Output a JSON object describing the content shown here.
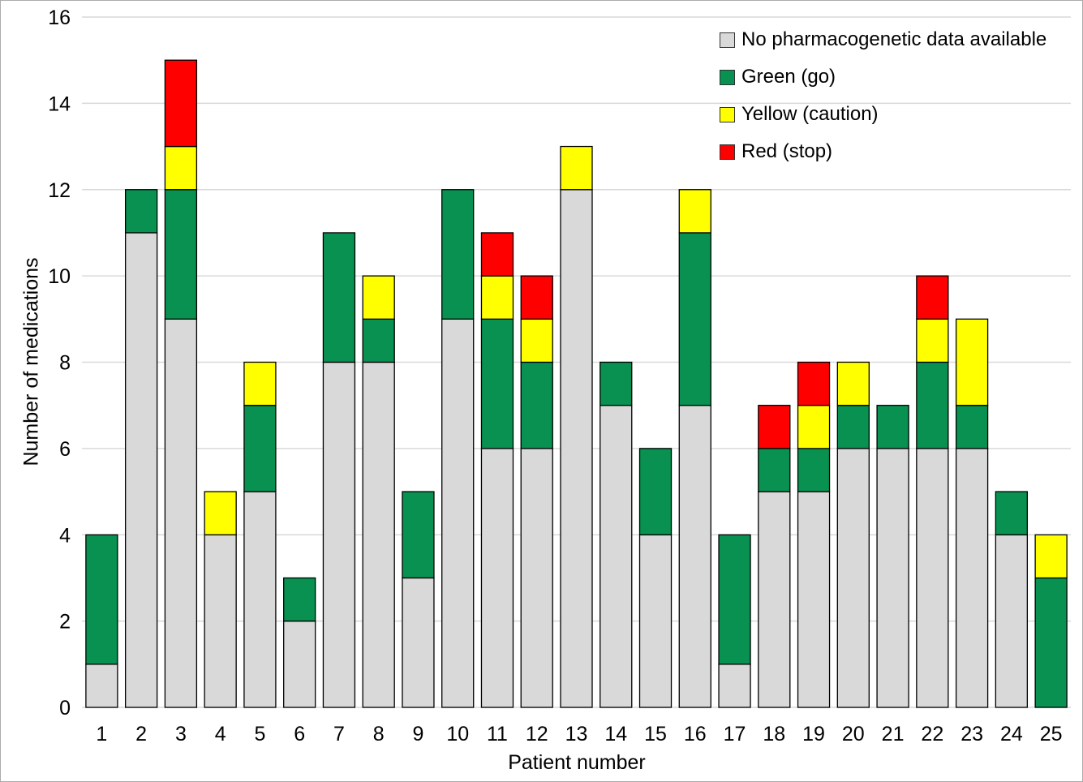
{
  "figure": {
    "background": "#ffffff",
    "border_color": "#ababab",
    "text_color": "#000000"
  },
  "chart_data": {
    "type": "bar",
    "stacked": true,
    "title": "",
    "xlabel": "Patient number",
    "ylabel": "Number of medications",
    "categories": [
      "1",
      "2",
      "3",
      "4",
      "5",
      "6",
      "7",
      "8",
      "9",
      "10",
      "11",
      "12",
      "13",
      "14",
      "15",
      "16",
      "17",
      "18",
      "19",
      "20",
      "21",
      "22",
      "23",
      "24",
      "25"
    ],
    "series": [
      {
        "name": "No pharmacogenetic data available",
        "color": "#d9d9d9",
        "values": [
          1,
          11,
          9,
          4,
          5,
          2,
          8,
          8,
          3,
          9,
          6,
          6,
          12,
          7,
          4,
          7,
          1,
          5,
          5,
          6,
          6,
          6,
          6,
          4,
          0
        ]
      },
      {
        "name": "Green (go)",
        "color": "#089150",
        "values": [
          3,
          1,
          3,
          0,
          2,
          1,
          3,
          1,
          2,
          3,
          3,
          2,
          0,
          1,
          2,
          4,
          3,
          1,
          1,
          1,
          1,
          2,
          1,
          1,
          3
        ]
      },
      {
        "name": "Yellow (caution)",
        "color": "#ffff00",
        "values": [
          0,
          0,
          1,
          1,
          1,
          0,
          0,
          1,
          0,
          0,
          1,
          1,
          1,
          0,
          0,
          1,
          0,
          0,
          1,
          1,
          0,
          1,
          2,
          0,
          1
        ]
      },
      {
        "name": "Red (stop)",
        "color": "#ff0000",
        "values": [
          0,
          0,
          2,
          0,
          0,
          0,
          0,
          0,
          0,
          0,
          1,
          1,
          0,
          0,
          0,
          0,
          0,
          1,
          1,
          0,
          0,
          1,
          0,
          0,
          0
        ]
      }
    ],
    "totals": [
      4,
      12,
      15,
      5,
      8,
      3,
      11,
      10,
      5,
      12,
      11,
      10,
      13,
      8,
      6,
      12,
      4,
      7,
      8,
      8,
      7,
      10,
      9,
      5,
      4
    ],
    "ylim": [
      0,
      16
    ],
    "ytick_step": 2,
    "grid": "horizontal",
    "gridline_color": "#d9d9d9",
    "bar_border_color": "#000000",
    "legend_position": "top-right"
  }
}
